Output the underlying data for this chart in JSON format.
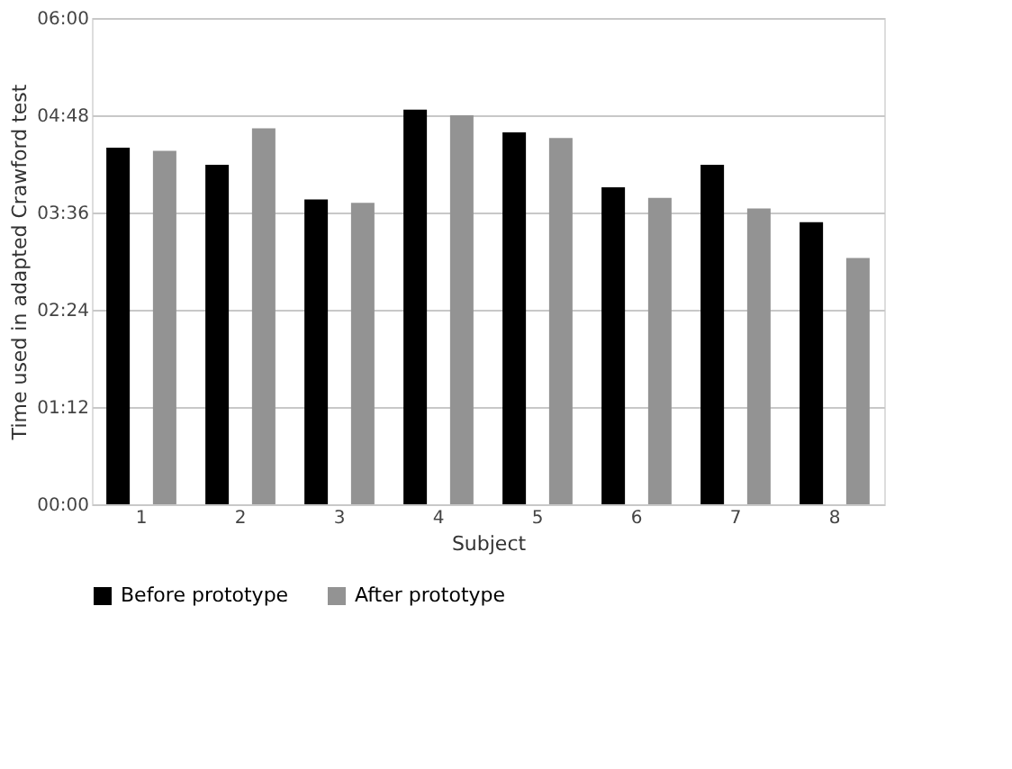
{
  "chart_data": {
    "type": "bar",
    "xlabel": "Subject",
    "ylabel": "Time used in adapted Crawford test",
    "categories": [
      "1",
      "2",
      "3",
      "4",
      "5",
      "6",
      "7",
      "8"
    ],
    "series": [
      {
        "name": "Before prototype",
        "color": "#000000",
        "values": [
          4.4,
          4.19,
          3.76,
          4.87,
          4.59,
          3.91,
          4.19,
          3.48
        ]
      },
      {
        "name": "After prototype",
        "color": "#939393",
        "values": [
          4.36,
          4.64,
          3.72,
          4.8,
          4.52,
          3.78,
          3.65,
          3.04
        ]
      }
    ],
    "ylim": [
      0,
      6
    ],
    "yticks": [
      {
        "value": 0,
        "label": "00:00"
      },
      {
        "value": 1.2,
        "label": "01:12"
      },
      {
        "value": 2.4,
        "label": "02:24"
      },
      {
        "value": 3.6,
        "label": "03:36"
      },
      {
        "value": 4.8,
        "label": "04:48"
      },
      {
        "value": 6,
        "label": "06:00"
      }
    ],
    "grid": "y",
    "legend": "bottom"
  }
}
